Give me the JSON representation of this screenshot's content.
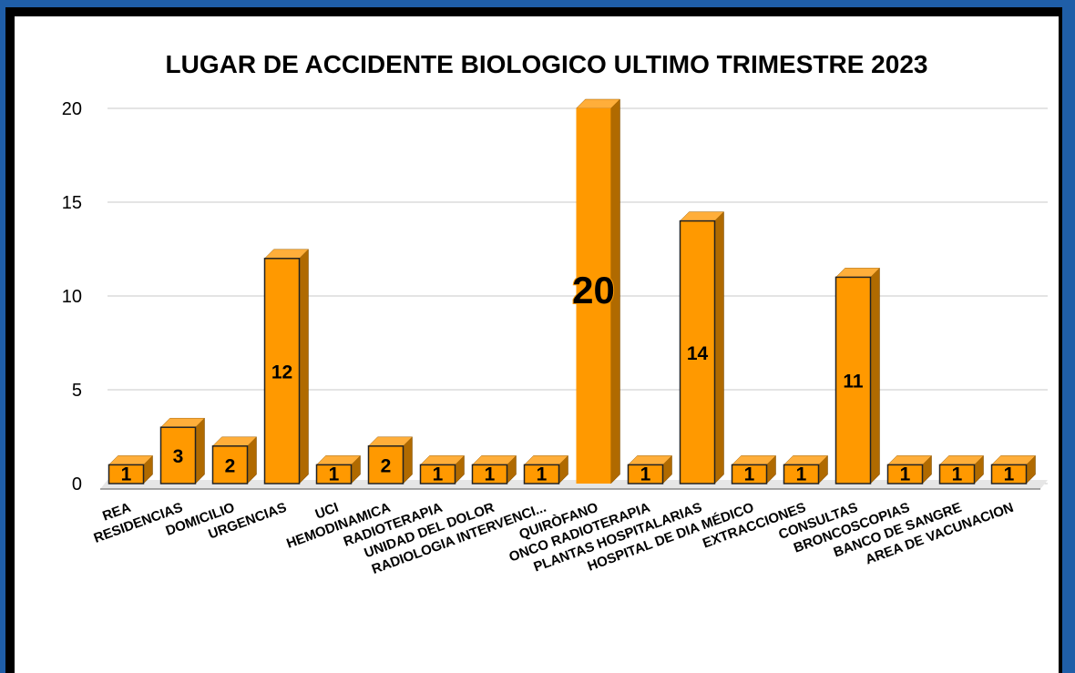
{
  "chart_data": {
    "type": "bar3d",
    "title": "LUGAR DE ACCIDENTE BIOLOGICO ULTIMO TRIMESTRE 2023",
    "categories": [
      "REA",
      "RESIDENCIAS",
      "DOMICILIO",
      "URGENCIAS",
      "UCI",
      "HEMODINAMICA",
      "RADIOTERAPIA",
      "UNIDAD DEL DOLOR",
      "RADIOLOGIA INTERVENCI...",
      "QUIRÒFANO",
      "ONCO RADIOTERAPIA",
      "PLANTAS HOSPITALARIAS",
      "HOSPITAL DE DIA MÉDICO",
      "EXTRACCIONES",
      "CONSULTAS",
      "BRONCOSCOPIAS",
      "BANCO DE SANGRE",
      "AREA DE VACUNACION"
    ],
    "values": [
      1,
      3,
      2,
      12,
      1,
      2,
      1,
      1,
      1,
      20,
      1,
      14,
      1,
      1,
      11,
      1,
      1,
      1
    ],
    "color": "#ff9900",
    "ylim": [
      0,
      20
    ],
    "yticks": [
      0,
      5,
      10,
      15,
      20
    ],
    "grid": true
  }
}
